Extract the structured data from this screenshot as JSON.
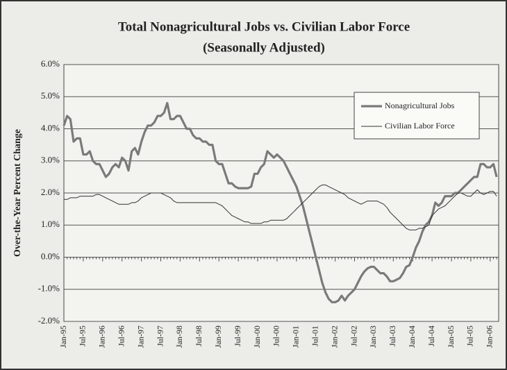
{
  "chart_data": {
    "type": "line",
    "title": "Total Nonagricultural Jobs vs. Civilian Labor Force",
    "subtitle": "(Seasonally Adjusted)",
    "y_label": "Over-the-Year Percent Change",
    "categories": [
      "Jan-95",
      null,
      null,
      null,
      null,
      null,
      "Jul-95",
      null,
      null,
      null,
      null,
      null,
      "Jan-96",
      null,
      null,
      null,
      null,
      null,
      "Jul-96",
      null,
      null,
      null,
      null,
      null,
      "Jan-97",
      null,
      null,
      null,
      null,
      null,
      "Jul-97",
      null,
      null,
      null,
      null,
      null,
      "Jan-98",
      null,
      null,
      null,
      null,
      null,
      "Jul-98",
      null,
      null,
      null,
      null,
      null,
      "Jan-99",
      null,
      null,
      null,
      null,
      null,
      "Jul-99",
      null,
      null,
      null,
      null,
      null,
      "Jan-00",
      null,
      null,
      null,
      null,
      null,
      "Jul-00",
      null,
      null,
      null,
      null,
      null,
      "Jan-01",
      null,
      null,
      null,
      null,
      null,
      "Jul-01",
      null,
      null,
      null,
      null,
      null,
      "Jan-02",
      null,
      null,
      null,
      null,
      null,
      "Jul-02",
      null,
      null,
      null,
      null,
      null,
      "Jan-03",
      null,
      null,
      null,
      null,
      null,
      "Jul-03",
      null,
      null,
      null,
      null,
      null,
      "Jan-04",
      null,
      null,
      null,
      null,
      null,
      "Jul-04",
      null,
      null,
      null,
      null,
      null,
      "Jan-05",
      null,
      null,
      null,
      null,
      null,
      "Jul-05",
      null,
      null,
      null,
      null,
      null,
      "Jan-06",
      null,
      null
    ],
    "series": [
      {
        "name": "Nonagricultural Jobs",
        "color": "#7a7a7a",
        "width": 3.2,
        "values": [
          4.1,
          4.4,
          4.3,
          3.6,
          3.7,
          3.7,
          3.2,
          3.2,
          3.3,
          3.0,
          2.9,
          2.9,
          2.7,
          2.5,
          2.6,
          2.8,
          2.9,
          2.8,
          3.1,
          3.0,
          2.7,
          3.3,
          3.4,
          3.2,
          3.6,
          3.9,
          4.1,
          4.1,
          4.2,
          4.4,
          4.4,
          4.5,
          4.8,
          4.3,
          4.3,
          4.4,
          4.4,
          4.2,
          4.0,
          4.0,
          3.8,
          3.7,
          3.7,
          3.6,
          3.6,
          3.5,
          3.5,
          3.0,
          2.9,
          2.9,
          2.6,
          2.3,
          2.3,
          2.2,
          2.15,
          2.15,
          2.15,
          2.15,
          2.2,
          2.6,
          2.6,
          2.8,
          2.9,
          3.3,
          3.2,
          3.1,
          3.2,
          3.1,
          3.0,
          2.8,
          2.6,
          2.4,
          2.2,
          1.9,
          1.6,
          1.2,
          0.8,
          0.4,
          0.0,
          -0.4,
          -0.8,
          -1.1,
          -1.3,
          -1.4,
          -1.4,
          -1.35,
          -1.2,
          -1.35,
          -1.2,
          -1.1,
          -1.0,
          -0.8,
          -0.6,
          -0.45,
          -0.35,
          -0.3,
          -0.3,
          -0.4,
          -0.5,
          -0.5,
          -0.6,
          -0.75,
          -0.75,
          -0.7,
          -0.65,
          -0.5,
          -0.3,
          -0.25,
          0.0,
          0.3,
          0.5,
          0.8,
          1.0,
          1.1,
          1.3,
          1.7,
          1.6,
          1.7,
          1.9,
          1.9,
          1.9,
          2.0,
          2.0,
          2.1,
          2.2,
          2.3,
          2.4,
          2.5,
          2.5,
          2.9,
          2.9,
          2.8,
          2.8,
          2.9,
          2.5
        ]
      },
      {
        "name": "Civilian Labor Force",
        "color": "#333333",
        "width": 1,
        "values": [
          1.8,
          1.8,
          1.85,
          1.85,
          1.85,
          1.9,
          1.9,
          1.9,
          1.9,
          1.9,
          1.95,
          1.95,
          1.9,
          1.85,
          1.8,
          1.75,
          1.7,
          1.65,
          1.65,
          1.65,
          1.65,
          1.7,
          1.7,
          1.75,
          1.85,
          1.9,
          1.95,
          2.0,
          2.0,
          2.0,
          2.0,
          1.95,
          1.9,
          1.85,
          1.75,
          1.7,
          1.7,
          1.7,
          1.7,
          1.7,
          1.7,
          1.7,
          1.7,
          1.7,
          1.7,
          1.7,
          1.7,
          1.7,
          1.65,
          1.6,
          1.5,
          1.4,
          1.3,
          1.25,
          1.2,
          1.15,
          1.1,
          1.1,
          1.05,
          1.05,
          1.05,
          1.05,
          1.1,
          1.1,
          1.15,
          1.15,
          1.15,
          1.15,
          1.15,
          1.2,
          1.3,
          1.4,
          1.5,
          1.6,
          1.7,
          1.8,
          1.9,
          2.0,
          2.1,
          2.2,
          2.25,
          2.25,
          2.2,
          2.15,
          2.1,
          2.05,
          2.0,
          1.95,
          1.85,
          1.8,
          1.75,
          1.7,
          1.65,
          1.7,
          1.75,
          1.75,
          1.75,
          1.75,
          1.7,
          1.65,
          1.55,
          1.4,
          1.3,
          1.2,
          1.1,
          1.0,
          0.9,
          0.85,
          0.85,
          0.85,
          0.9,
          0.9,
          0.95,
          1.0,
          1.3,
          1.4,
          1.5,
          1.55,
          1.6,
          1.7,
          1.8,
          1.9,
          2.0,
          2.0,
          1.95,
          1.9,
          1.9,
          2.0,
          2.1,
          2.0,
          1.95,
          2.0,
          2.05,
          2.05,
          1.9
        ]
      }
    ],
    "ylim": [
      -2,
      6
    ],
    "yticks": [
      {
        "value": -2,
        "label": "-2.0%"
      },
      {
        "value": -1,
        "label": "-1.0%"
      },
      {
        "value": 0,
        "label": "0.0%"
      },
      {
        "value": 1,
        "label": "1.0%"
      },
      {
        "value": 2,
        "label": "2.0%"
      },
      {
        "value": 3,
        "label": "3.0%"
      },
      {
        "value": 4,
        "label": "4.0%"
      },
      {
        "value": 5,
        "label": "5.0%"
      },
      {
        "value": 6,
        "label": "6.0%"
      }
    ],
    "grid": true,
    "legend": "upper right"
  }
}
